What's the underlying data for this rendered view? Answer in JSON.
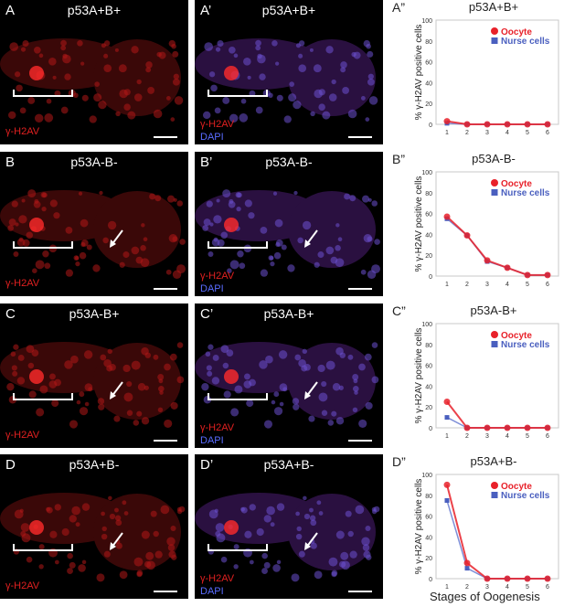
{
  "rows": [
    {
      "left_label": "A",
      "mid_label": "A’",
      "chart_label": "A”",
      "genotype": "p53A+B+",
      "has_arrow": false,
      "has_bracket": true
    },
    {
      "left_label": "B",
      "mid_label": "B’",
      "chart_label": "B”",
      "genotype": "p53A-B-",
      "has_arrow": true,
      "has_bracket": true
    },
    {
      "left_label": "C",
      "mid_label": "C’",
      "chart_label": "C”",
      "genotype": "p53A-B+",
      "has_arrow": true,
      "has_bracket": true
    },
    {
      "left_label": "D",
      "mid_label": "D’",
      "chart_label": "D”",
      "genotype": "p53A+B-",
      "has_arrow": true,
      "has_bracket": true
    }
  ],
  "stains": {
    "red": "γ-H2AV",
    "blue": "DAPI"
  },
  "colors": {
    "oocyte": "#e8212a",
    "nurse": "#4a5fbf",
    "overlap": "#8a3a8a",
    "red_stain": "#e02020",
    "blue_stain": "#5a6cff"
  },
  "x_axis_title": "Stages of Oogenesis",
  "chart_data": [
    {
      "type": "line",
      "title": "p53A+B+",
      "ylabel": "% γ-H2AV positive cells",
      "x": [
        1,
        2,
        3,
        4,
        5,
        6
      ],
      "ylim": [
        0,
        100
      ],
      "yticks": [
        0,
        20,
        40,
        60,
        80,
        100
      ],
      "legend_position": "top-right",
      "series": [
        {
          "name": "Oocyte",
          "values": [
            3,
            0,
            0,
            0,
            0,
            0
          ]
        },
        {
          "name": "Nurse cells",
          "values": [
            1,
            0,
            0,
            0,
            0,
            0
          ]
        }
      ]
    },
    {
      "type": "line",
      "title": "p53A-B-",
      "ylabel": "% γ-H2AV positive cells",
      "x": [
        1,
        2,
        3,
        4,
        5,
        6
      ],
      "ylim": [
        0,
        100
      ],
      "yticks": [
        0,
        20,
        40,
        60,
        80,
        100
      ],
      "legend_position": "top-right",
      "series": [
        {
          "name": "Oocyte",
          "values": [
            57,
            39,
            15,
            8,
            1,
            1
          ]
        },
        {
          "name": "Nurse cells",
          "values": [
            55,
            39,
            14,
            8,
            1,
            1
          ]
        }
      ]
    },
    {
      "type": "line",
      "title": "p53A-B+",
      "ylabel": "% γ-H2AV positive cells",
      "x": [
        1,
        2,
        3,
        4,
        5,
        6
      ],
      "ylim": [
        0,
        100
      ],
      "yticks": [
        0,
        20,
        40,
        60,
        80,
        100
      ],
      "legend_position": "top-right",
      "series": [
        {
          "name": "Oocyte",
          "values": [
            25,
            0,
            0,
            0,
            0,
            0
          ]
        },
        {
          "name": "Nurse cells",
          "values": [
            10,
            0,
            0,
            0,
            0,
            0
          ]
        }
      ]
    },
    {
      "type": "line",
      "title": "p53A+B-",
      "ylabel": "% γ-H2AV positive cells",
      "x": [
        1,
        2,
        3,
        4,
        5,
        6
      ],
      "ylim": [
        0,
        100
      ],
      "yticks": [
        0,
        20,
        40,
        60,
        80,
        100
      ],
      "legend_position": "top-right",
      "series": [
        {
          "name": "Oocyte",
          "values": [
            90,
            15,
            0,
            0,
            0,
            0
          ]
        },
        {
          "name": "Nurse cells",
          "values": [
            75,
            10,
            0,
            0,
            0,
            0
          ]
        }
      ]
    }
  ]
}
